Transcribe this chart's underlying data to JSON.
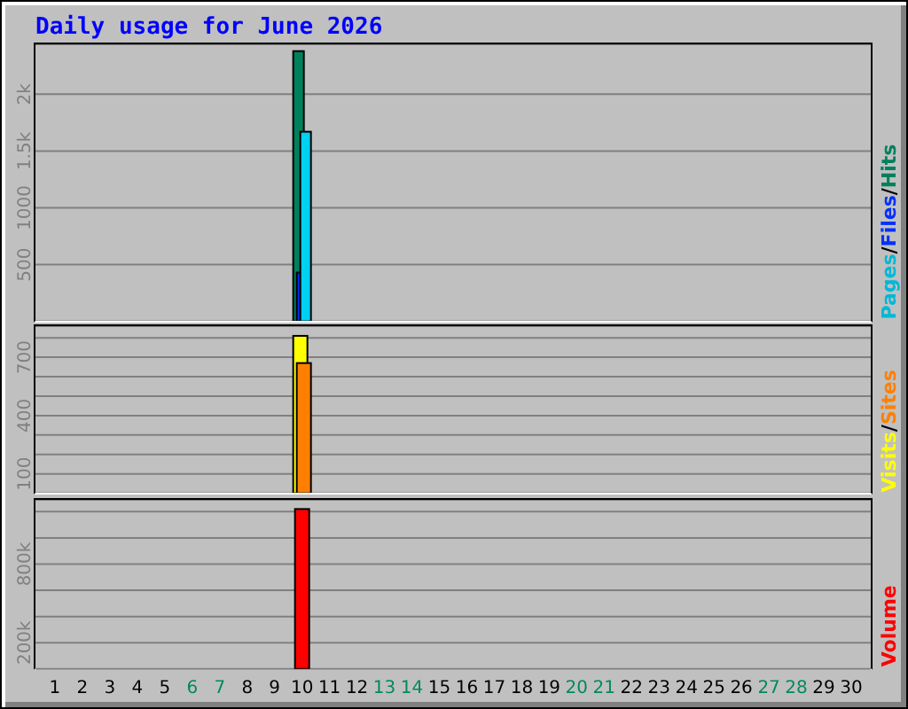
{
  "chart_data": [
    {
      "type": "bar",
      "title": "Daily usage for June 2026",
      "x": [
        "2026-06-10"
      ],
      "series": [
        {
          "name": "Pages",
          "color": "#00d0f2",
          "values": [
            1670
          ]
        },
        {
          "name": "Files",
          "color": "#0030ff",
          "values": [
            430
          ]
        },
        {
          "name": "Hits",
          "color": "#00805c",
          "values": [
            2380
          ]
        }
      ],
      "xlim": [
        "2026-05-31T07:00",
        "2026-06-30T17:00"
      ],
      "ylim": [
        0,
        2440
      ],
      "yticks": [
        500,
        1000,
        {
          "value": 1500,
          "label": "1.5k"
        },
        {
          "value": 2000,
          "label": "2k"
        }
      ],
      "annotations": [
        "/",
        "/"
      ],
      "grid": "y",
      "legend": "right",
      "tick_labels": "y"
    },
    {
      "type": "bar",
      "x": [
        "2026-06-10"
      ],
      "series": [
        {
          "name": "Visits",
          "color": "#ffff00",
          "values": [
            810
          ]
        },
        {
          "name": "Sites",
          "color": "#ff8000",
          "values": [
            670
          ]
        }
      ],
      "xlim": [
        "2026-05-31T07:00",
        "2026-06-30T17:00"
      ],
      "ylim": [
        0,
        860
      ],
      "yticks": [
        100,
        {
          "value": 200,
          "label": null
        },
        {
          "value": 300,
          "label": null
        },
        400,
        {
          "value": 500,
          "label": null
        },
        {
          "value": 600,
          "label": null
        },
        700,
        {
          "value": 800,
          "label": null
        }
      ],
      "annotations": [
        "/"
      ],
      "grid": "y",
      "legend": "right",
      "tick_labels": "y"
    },
    {
      "type": "bar",
      "x": [
        "2026-06-10"
      ],
      "series": [
        {
          "name": "Volume",
          "color": "#ff0000",
          "values": [
            1220000
          ]
        }
      ],
      "xlim": [
        "2026-05-31T07:00",
        "2026-06-30T17:00"
      ],
      "xticks": [
        {
          "value": "2026-06-01",
          "label": "1"
        },
        {
          "value": "2026-06-02",
          "label": "2"
        },
        {
          "value": "2026-06-03",
          "label": "3"
        },
        {
          "value": "2026-06-04",
          "label": "4"
        },
        {
          "value": "2026-06-05",
          "label": "5"
        },
        {
          "value": "2026-06-06",
          "label": "6"
        },
        {
          "value": "2026-06-07",
          "label": "7"
        },
        {
          "value": "2026-06-08",
          "label": "8"
        },
        {
          "value": "2026-06-09",
          "label": "9"
        },
        {
          "value": "2026-06-10",
          "label": "10"
        },
        {
          "value": "2026-06-11",
          "label": "11"
        },
        {
          "value": "2026-06-12",
          "label": "12"
        },
        {
          "value": "2026-06-13",
          "label": "13"
        },
        {
          "value": "2026-06-14",
          "label": "14"
        },
        {
          "value": "2026-06-15",
          "label": "15"
        },
        {
          "value": "2026-06-16",
          "label": "16"
        },
        {
          "value": "2026-06-17",
          "label": "17"
        },
        {
          "value": "2026-06-18",
          "label": "18"
        },
        {
          "value": "2026-06-19",
          "label": "19"
        },
        {
          "value": "2026-06-20",
          "label": "20"
        },
        {
          "value": "2026-06-21",
          "label": "21"
        },
        {
          "value": "2026-06-22",
          "label": "22"
        },
        {
          "value": "2026-06-23",
          "label": "23"
        },
        {
          "value": "2026-06-24",
          "label": "24"
        },
        {
          "value": "2026-06-25",
          "label": "25"
        },
        {
          "value": "2026-06-26",
          "label": "26"
        },
        {
          "value": "2026-06-27",
          "label": "27"
        },
        {
          "value": "2026-06-28",
          "label": "28"
        },
        {
          "value": "2026-06-29",
          "label": "29"
        },
        {
          "value": "2026-06-30",
          "label": "30"
        }
      ],
      "ylim": [
        0,
        1290000
      ],
      "yticks": [
        {
          "value": 200000,
          "label": "200k"
        },
        {
          "value": 400000,
          "label": null
        },
        {
          "value": 600000,
          "label": null
        },
        {
          "value": 800000,
          "label": "800k"
        },
        {
          "value": 1000000,
          "label": null
        },
        {
          "value": 1200000,
          "label": null
        }
      ],
      "grid": "y",
      "legend": "right"
    }
  ]
}
